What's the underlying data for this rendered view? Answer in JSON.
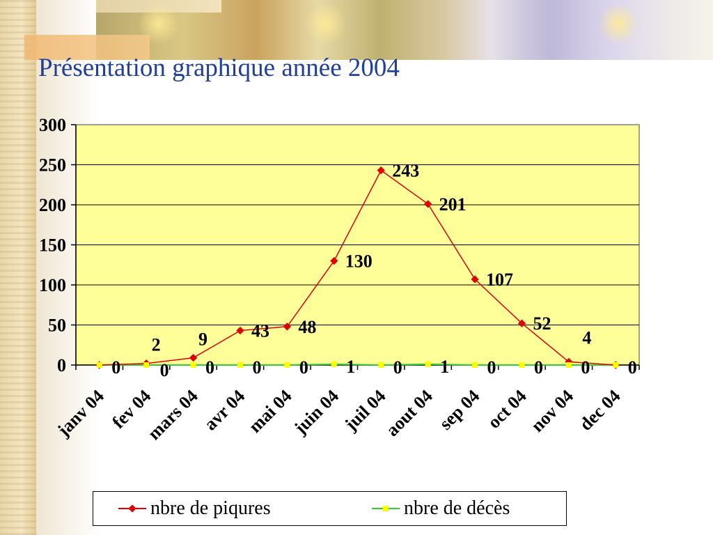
{
  "slide": {
    "title": "Présentation graphique année 2004"
  },
  "colors": {
    "title": "#1f3f9a",
    "plot_background": "#ffff99",
    "series1": "#e00000",
    "series2": "#ffff00",
    "series2_line": "#33cc33"
  },
  "chart_data": {
    "type": "line",
    "categories": [
      "janv 04",
      "fev 04",
      "mars 04",
      "avr 04",
      "mai 04",
      "juin 04",
      "juil 04",
      "aout 04",
      "sep 04",
      "oct 04",
      "nov 04",
      "dec 04"
    ],
    "series": [
      {
        "name": "nbre de piqures",
        "values": [
          0,
          2,
          9,
          43,
          48,
          130,
          243,
          201,
          107,
          52,
          4,
          0
        ],
        "color": "#e00000",
        "marker": "diamond"
      },
      {
        "name": "nbre de décès",
        "values": [
          0,
          0,
          0,
          0,
          0,
          1,
          0,
          1,
          0,
          0,
          0,
          0
        ],
        "color": "#ffff00",
        "marker": "square"
      }
    ],
    "y_ticks": [
      "0",
      "50",
      "100",
      "150",
      "200",
      "250",
      "300"
    ],
    "ylim": [
      0,
      300
    ],
    "grid": true,
    "legend_position": "bottom",
    "data_labels": true
  }
}
